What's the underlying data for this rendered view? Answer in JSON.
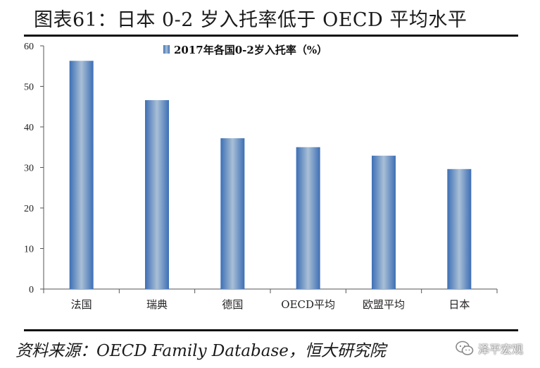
{
  "header": {
    "title": "图表61：日本 0-2 岁入托率低于 OECD 平均水平"
  },
  "footer": {
    "source": "资料来源：OECD Family Database，恒大研究院",
    "watermark": "泽平宏观"
  },
  "chart_data": {
    "type": "bar",
    "title": "",
    "categories": [
      "法国",
      "瑞典",
      "德国",
      "OECD平均",
      "欧盟平均",
      "日本"
    ],
    "series": [
      {
        "name": "2017年各国0-2岁入托率（%）",
        "values": [
          56.3,
          46.6,
          37.2,
          35.0,
          32.9,
          29.6
        ]
      }
    ],
    "xlabel": "",
    "ylabel": "",
    "ylim": [
      0,
      60
    ],
    "yticks": [
      0,
      10,
      20,
      30,
      40,
      50,
      60
    ],
    "legend_position": "top-center",
    "grid": false,
    "colors": {
      "bar_dark": "#3d6fb5",
      "bar_light": "#a9bfd6",
      "axis": "#555555"
    }
  }
}
